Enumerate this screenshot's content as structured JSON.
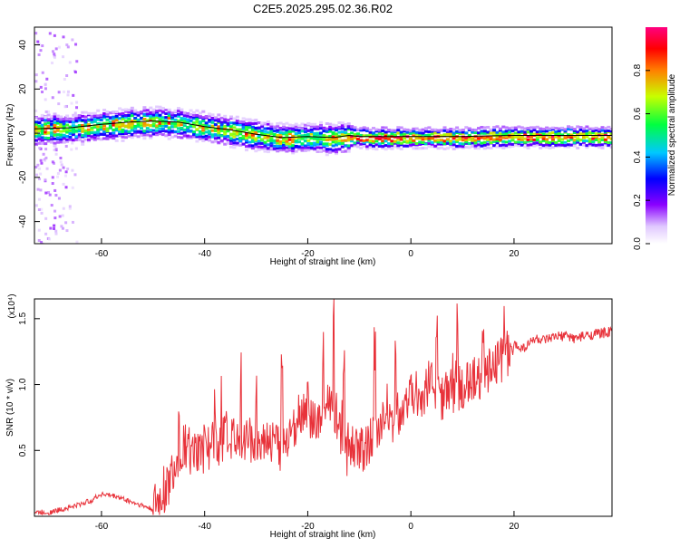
{
  "figure_title": "C2E5.2025.295.02.36.R02",
  "colors": {
    "snr_line": "#e8323a",
    "trace": "#000000",
    "axis": "#000000"
  },
  "colorbar": {
    "label": "Normalized spectral amplitude",
    "ticks": [
      "0.0",
      "0.2",
      "0.4",
      "0.6",
      "0.8"
    ],
    "tick_values": [
      0.0,
      0.2,
      0.4,
      0.6,
      0.8
    ],
    "range": [
      0,
      1
    ],
    "colormap": "rainbow (white-violet-blue-cyan-green-yellow-red-magenta)"
  },
  "chart_data": [
    {
      "type": "heatmap",
      "title": "C2E5.2025.295.02.36.R02",
      "xlabel": "Height of straight line (km)",
      "ylabel": "Frequency (Hz)",
      "xlim": [
        -73,
        39
      ],
      "ylim": [
        -50,
        48
      ],
      "xticks": [
        -60,
        -40,
        -20,
        0,
        20
      ],
      "xtick_labels": [
        "-60",
        "-40",
        "-20",
        "0",
        "20"
      ],
      "yticks": [
        -40,
        -20,
        0,
        20,
        40
      ],
      "ytick_labels": [
        "-40",
        "-20",
        "0",
        "20",
        "40"
      ],
      "grid": false,
      "peak_frequency_trace": {
        "x": [
          -73,
          -66,
          -60,
          -55,
          -50,
          -45,
          -40,
          -35,
          -30,
          -25,
          -20,
          -15,
          -12,
          -10,
          -5,
          0,
          5,
          10,
          15,
          20,
          25,
          30,
          35,
          39
        ],
        "y": [
          2,
          2.5,
          4,
          5,
          5.5,
          5,
          3,
          1.5,
          -0.5,
          -2,
          -1.5,
          -2,
          -1,
          -1.5,
          -1.5,
          -1.5,
          -1.5,
          -1.5,
          -1.2,
          -1,
          -1,
          -1,
          -1,
          -1
        ]
      }
    },
    {
      "type": "line",
      "xlabel": "Height of straight line (km)",
      "ylabel": "SNR (10 * v/v)",
      "y_multiplier": "(x10⁴)",
      "xlim": [
        -73,
        39
      ],
      "ylim": [
        0,
        1.65
      ],
      "xticks": [
        -60,
        -40,
        -20,
        0,
        20
      ],
      "xtick_labels": [
        "-60",
        "-40",
        "-20",
        "0",
        "20"
      ],
      "yticks": [
        0.5,
        1.0,
        1.5
      ],
      "ytick_labels": [
        "0.5",
        "1.0",
        "1.5"
      ],
      "grid": false,
      "series": [
        {
          "color": "#e8323a",
          "x": [
            -73,
            -70,
            -67,
            -65,
            -62,
            -60,
            -57,
            -55,
            -52,
            -50,
            -48,
            -46,
            -44,
            -42,
            -40,
            -38,
            -35,
            -33,
            -30,
            -28,
            -25,
            -22,
            -20,
            -18,
            -16,
            -14,
            -12,
            -10,
            -8,
            -6,
            -4,
            -2,
            0,
            2,
            4,
            6,
            8,
            10,
            12,
            14,
            16,
            18,
            20,
            22,
            24,
            26,
            28,
            30,
            32,
            35,
            39
          ],
          "y": [
            0.03,
            0.03,
            0.06,
            0.08,
            0.12,
            0.17,
            0.15,
            0.12,
            0.08,
            0.05,
            0.15,
            0.35,
            0.55,
            0.45,
            0.5,
            0.55,
            0.6,
            0.62,
            0.55,
            0.6,
            0.5,
            0.75,
            0.8,
            0.65,
            0.85,
            0.75,
            0.55,
            0.5,
            0.55,
            0.72,
            0.68,
            0.8,
            0.95,
            0.9,
            1.05,
            0.9,
            0.95,
            1.0,
            1.02,
            1.08,
            1.15,
            1.2,
            1.3,
            1.28,
            1.35,
            1.33,
            1.36,
            1.37,
            1.35,
            1.38,
            1.4
          ]
        }
      ],
      "spikes": [
        {
          "x": -45,
          "y": 0.85
        },
        {
          "x": -40,
          "y": 0.75
        },
        {
          "x": -38,
          "y": 0.8
        },
        {
          "x": -33,
          "y": 1.1
        },
        {
          "x": -30,
          "y": 0.95
        },
        {
          "x": -25,
          "y": 1.1
        },
        {
          "x": -20,
          "y": 1.05
        },
        {
          "x": -17,
          "y": 1.3
        },
        {
          "x": -15,
          "y": 1.65
        },
        {
          "x": -13,
          "y": 1.2
        },
        {
          "x": -7,
          "y": 1.25
        },
        {
          "x": -3,
          "y": 1.4
        },
        {
          "x": 5,
          "y": 1.45
        },
        {
          "x": 9,
          "y": 1.5
        },
        {
          "x": 14,
          "y": 1.4
        }
      ]
    }
  ]
}
